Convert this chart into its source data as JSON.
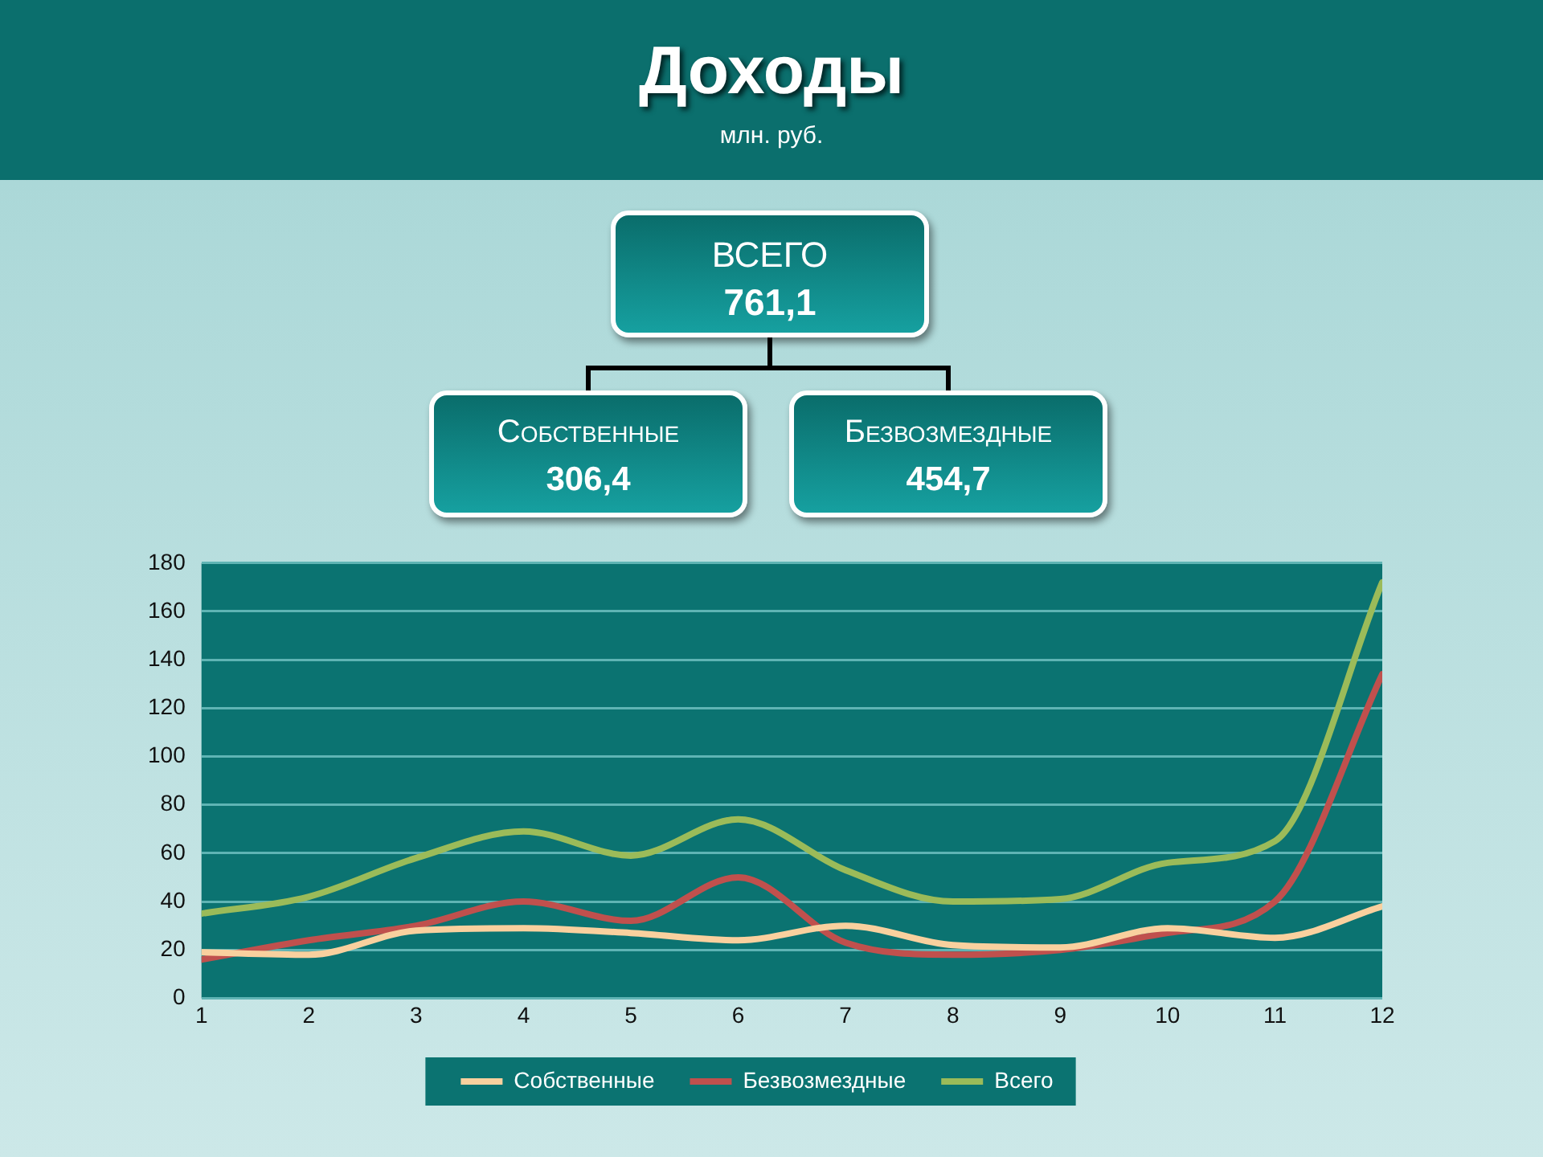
{
  "chart_data": {
    "type": "line",
    "title": "Доходы",
    "subtitle": "млн. руб.",
    "annotations": [
      "ВСЕГО",
      "761,1",
      "Собственные",
      "306,4",
      "Безвозмездные",
      "454,7"
    ],
    "x": [
      1,
      2,
      3,
      4,
      5,
      6,
      7,
      8,
      9,
      10,
      11,
      12
    ],
    "xlim": [
      1,
      12
    ],
    "xticks": [
      1,
      2,
      3,
      4,
      5,
      6,
      7,
      8,
      9,
      10,
      11,
      12
    ],
    "ylim": [
      0,
      180
    ],
    "yticks": [
      0,
      20,
      40,
      60,
      80,
      100,
      120,
      140,
      160,
      180
    ],
    "series": [
      {
        "name": "Собственные",
        "color": "#f9d09e",
        "values": [
          19,
          18,
          28,
          29,
          27,
          24,
          30,
          22,
          21,
          29,
          25,
          38
        ]
      },
      {
        "name": "Безвозмездные",
        "color": "#c0504d",
        "values": [
          16,
          24,
          30,
          40,
          32,
          50,
          23,
          18,
          20,
          27,
          40,
          134
        ]
      },
      {
        "name": "Всего",
        "color": "#9bbb59",
        "values": [
          35,
          42,
          58,
          69,
          59,
          74,
          53,
          40,
          41,
          56,
          65,
          172
        ]
      }
    ],
    "grid": "y",
    "legend": "bottom",
    "marker": "none",
    "line_style": "solid"
  }
}
